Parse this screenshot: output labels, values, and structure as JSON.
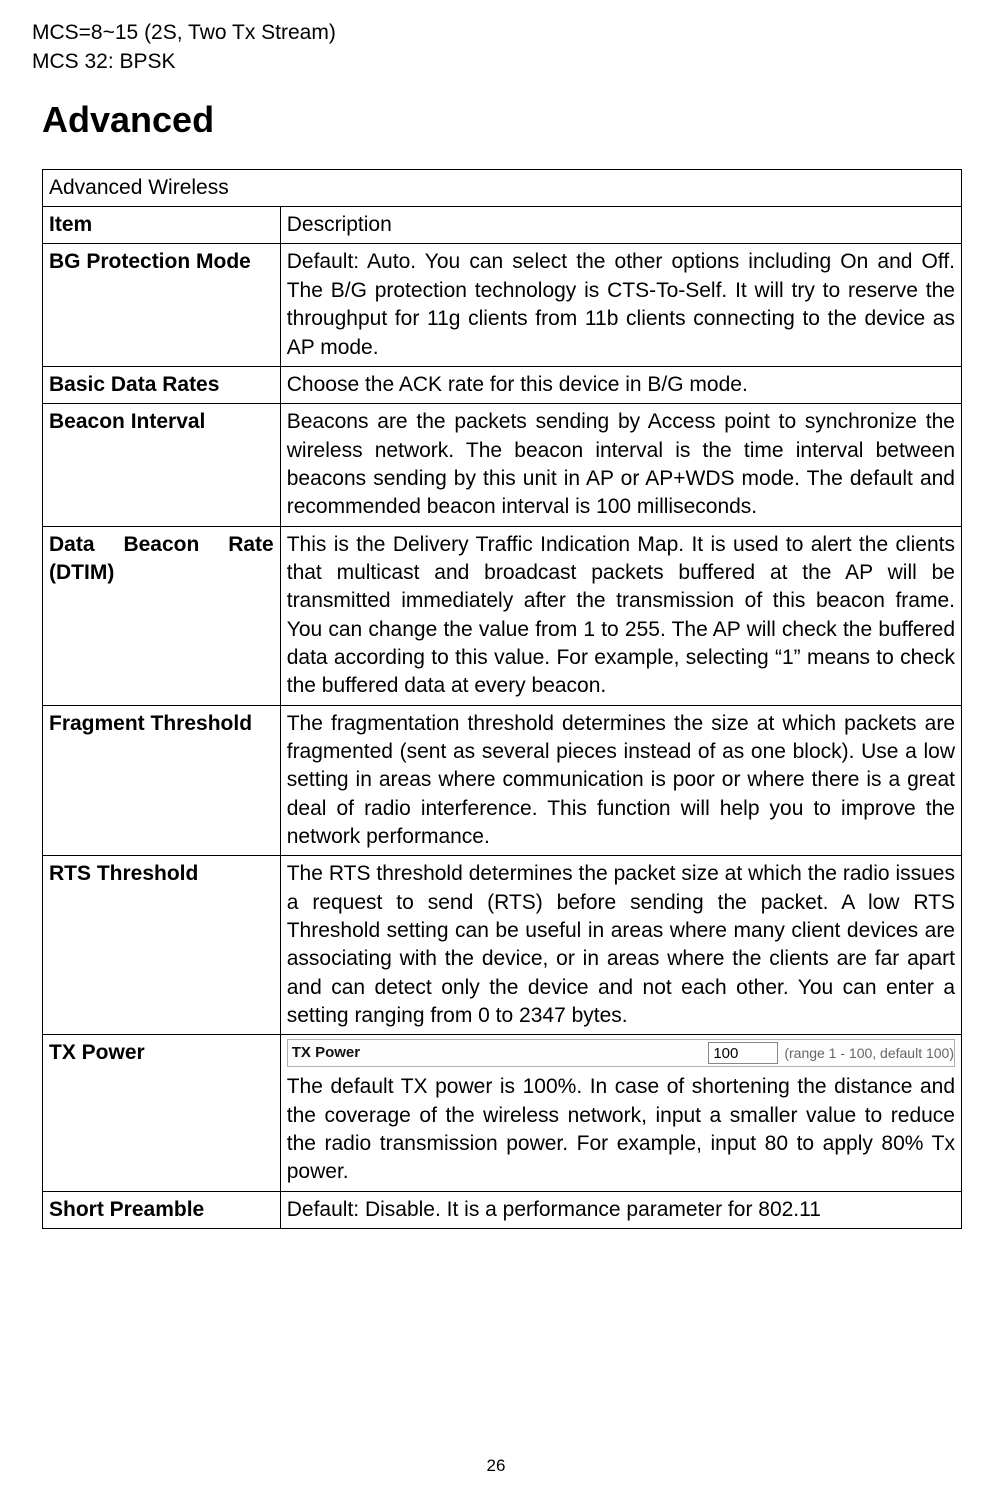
{
  "pre": {
    "line1": "MCS=8~15 (2S, Two Tx Stream)",
    "line2": "MCS 32: BPSK"
  },
  "heading": "Advanced",
  "table": {
    "title_row": "Advanced Wireless",
    "header": {
      "item": "Item",
      "desc": "Description"
    },
    "rows": {
      "bg_protection": {
        "label": "BG Protection Mode",
        "desc": "Default: Auto. You can select the other options including On and Off. The B/G protection technology is CTS-To-Self. It will try to reserve the throughput for 11g clients from 11b clients connecting to the device as AP mode."
      },
      "basic_data_rates": {
        "label": "Basic Data Rates",
        "desc": "Choose the ACK rate for this device in B/G mode."
      },
      "beacon_interval": {
        "label": "Beacon Interval",
        "desc": "Beacons are the packets sending by Access point to synchronize the wireless network. The beacon interval is the time interval between beacons sending by this unit in AP or AP+WDS mode. The default and recommended beacon interval is 100 milliseconds."
      },
      "dtim": {
        "label": "Data Beacon Rate (DTIM)",
        "desc": "This is the Delivery Traffic Indication Map. It is used to alert the clients that multicast and broadcast packets buffered at the AP will be transmitted immediately after the transmission of this beacon frame. You can change the value from 1 to 255. The AP will check the buffered data according to this value. For example, selecting “1” means to check the buffered data at every beacon."
      },
      "fragment_threshold": {
        "label": "Fragment Threshold",
        "desc": "The fragmentation threshold determines the size at which packets are fragmented (sent as several pieces instead of as one block). Use a low setting in areas where communication is poor or where there is a great deal of radio interference. This function will help you to improve the network performance."
      },
      "rts_threshold": {
        "label": "RTS Threshold",
        "desc": "The RTS threshold determines the packet size at which the radio issues a request to send (RTS) before sending the packet. A low RTS Threshold setting can be useful in areas where many client devices are associating with the device, or in areas where the clients are far apart and can detect only the device and not each other. You can enter a setting ranging from 0 to 2347 bytes."
      },
      "tx_power": {
        "label": "TX Power",
        "ui": {
          "field_label": "TX Power",
          "value": "100",
          "range_text": "(range 1 - 100, default 100)"
        },
        "desc": "The default TX power is 100%. In case of shortening the distance and the coverage of the wireless network, input a smaller value to reduce the radio transmission power. For example, input 80 to apply 80% Tx power."
      },
      "short_preamble": {
        "label": "Short Preamble",
        "desc": "Default: Disable. It is a performance parameter for 802.11"
      }
    }
  },
  "page_number": "26",
  "colors": {
    "text": "#000000",
    "background": "#ffffff",
    "border": "#000000",
    "input_border": "#888888",
    "ui_box_border": "#b0b0b0",
    "ui_box_bg": "#fdfdfd",
    "range_text_color": "#666666"
  }
}
